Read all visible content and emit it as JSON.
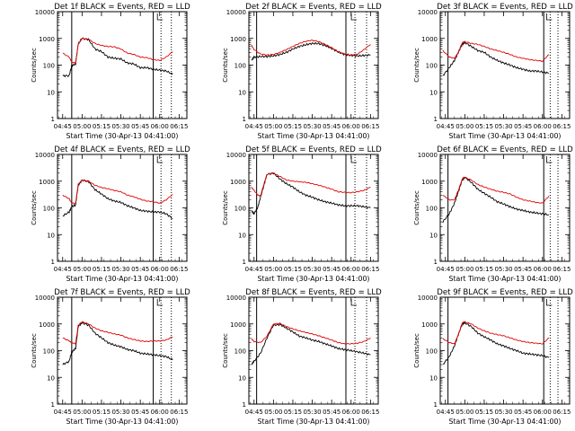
{
  "figure": {
    "panel_titles": [
      "Det 1f BLACK = Events, RED = LLD",
      "Det 2f BLACK = Events, RED = LLD",
      "Det 3f BLACK = Events, RED = LLD",
      "Det 4f BLACK = Events, RED = LLD",
      "Det 5f BLACK = Events, RED = LLD",
      "Det 6f BLACK = Events, RED = LLD",
      "Det 7f BLACK = Events, RED = LLD",
      "Det 8f BLACK = Events, RED = LLD",
      "Det 9f BLACK = Events, RED = LLD"
    ],
    "ylabel": "Counts/sec",
    "xlabel": "Start Time (30-Apr-13 04:41:00)",
    "xticks": [
      "04:45",
      "05:00",
      "05:15",
      "05:30",
      "05:45",
      "06:00",
      "06:15"
    ],
    "yticks": [
      "1",
      "10",
      "100",
      "1000",
      "10000"
    ],
    "colors": {
      "events": "#000000",
      "lld": "#e00000"
    }
  },
  "chart_data": [
    {
      "type": "line",
      "title": "Det 1f BLACK = Events, RED = LLD",
      "xlabel": "",
      "ylabel": "Counts/sec",
      "ylog": true,
      "ylim": [
        1,
        10000
      ],
      "x": [
        "04:45",
        "04:50",
        "04:52",
        "04:55",
        "04:57",
        "05:00",
        "05:05",
        "05:10",
        "05:15",
        "05:20",
        "05:25",
        "05:30",
        "05:35",
        "05:40",
        "05:45",
        "05:50",
        "05:55",
        "06:00",
        "06:05",
        "06:10"
      ],
      "series": [
        {
          "name": "Events",
          "values": [
            40,
            40,
            95,
            110,
            620,
            1000,
            900,
            400,
            320,
            200,
            180,
            170,
            120,
            110,
            80,
            80,
            70,
            65,
            60,
            45
          ]
        },
        {
          "name": "LLD",
          "values": [
            280,
            200,
            130,
            120,
            600,
            1000,
            920,
            650,
            540,
            500,
            480,
            400,
            280,
            250,
            200,
            190,
            160,
            150,
            200,
            320
          ]
        }
      ],
      "vlines": [
        "04:52",
        "05:55"
      ],
      "vlines_dotted": [
        "06:01",
        "06:09"
      ]
    },
    {
      "type": "line",
      "title": "Det 2f BLACK = Events, RED = LLD",
      "xlabel": "",
      "ylabel": "Counts/sec",
      "ylog": true,
      "ylim": [
        1,
        10000
      ],
      "x": [
        "04:43",
        "04:45",
        "04:50",
        "04:55",
        "05:00",
        "05:05",
        "05:10",
        "05:15",
        "05:20",
        "05:25",
        "05:30",
        "05:35",
        "05:40",
        "05:45",
        "05:50",
        "05:55",
        "06:00",
        "06:05",
        "06:10",
        "06:15"
      ],
      "series": [
        {
          "name": "Events",
          "values": [
            150,
            200,
            210,
            210,
            220,
            250,
            300,
            400,
            500,
            580,
            650,
            640,
            540,
            420,
            310,
            250,
            230,
            220,
            230,
            240
          ]
        },
        {
          "name": "LLD",
          "values": [
            550,
            380,
            260,
            240,
            250,
            300,
            380,
            500,
            650,
            780,
            850,
            760,
            600,
            450,
            320,
            260,
            240,
            260,
            380,
            600
          ]
        }
      ],
      "vlines": [
        "04:47",
        "05:56"
      ],
      "vlines_dotted": [
        "06:03",
        "06:12"
      ]
    },
    {
      "type": "line",
      "title": "Det 3f BLACK = Events, RED = LLD",
      "xlabel": "",
      "ylabel": "Counts/sec",
      "ylog": true,
      "ylim": [
        1,
        10000
      ],
      "x": [
        "04:43",
        "04:48",
        "04:52",
        "04:55",
        "04:58",
        "05:00",
        "05:05",
        "05:10",
        "05:15",
        "05:20",
        "05:25",
        "05:30",
        "05:35",
        "05:40",
        "05:45",
        "05:50",
        "05:55",
        "06:00",
        "06:05"
      ],
      "series": [
        {
          "name": "Events",
          "values": [
            40,
            80,
            150,
            300,
            600,
            700,
            500,
            350,
            300,
            200,
            150,
            120,
            100,
            80,
            70,
            60,
            60,
            55,
            50
          ]
        },
        {
          "name": "LLD",
          "values": [
            350,
            200,
            180,
            300,
            700,
            750,
            650,
            600,
            500,
            400,
            350,
            300,
            250,
            200,
            180,
            160,
            150,
            140,
            250
          ]
        }
      ],
      "vlines": [
        "04:47",
        "06:01"
      ],
      "vlines_dotted": [
        "06:06",
        "06:12"
      ]
    },
    {
      "type": "line",
      "title": "Det 4f BLACK = Events, RED = LLD",
      "xlabel": "",
      "ylabel": "Counts/sec",
      "ylog": true,
      "ylim": [
        1,
        10000
      ],
      "x": [
        "04:45",
        "04:50",
        "04:52",
        "04:55",
        "04:57",
        "05:00",
        "05:05",
        "05:10",
        "05:15",
        "05:20",
        "05:25",
        "05:30",
        "05:35",
        "05:40",
        "05:45",
        "05:50",
        "05:55",
        "06:00",
        "06:05",
        "06:10"
      ],
      "series": [
        {
          "name": "Events",
          "values": [
            50,
            70,
            110,
            130,
            700,
            1100,
            950,
            480,
            330,
            220,
            180,
            160,
            120,
            100,
            80,
            75,
            70,
            70,
            60,
            40
          ]
        },
        {
          "name": "LLD",
          "values": [
            300,
            220,
            150,
            150,
            750,
            1100,
            1000,
            700,
            580,
            520,
            450,
            400,
            300,
            260,
            210,
            180,
            170,
            150,
            200,
            320
          ]
        }
      ],
      "vlines": [
        "04:52",
        "05:55"
      ],
      "vlines_dotted": [
        "06:01",
        "06:09"
      ]
    },
    {
      "type": "line",
      "title": "Det 5f BLACK = Events, RED = LLD",
      "xlabel": "",
      "ylabel": "Counts/sec",
      "ylog": true,
      "ylim": [
        1,
        10000
      ],
      "x": [
        "04:43",
        "04:45",
        "04:48",
        "04:50",
        "04:53",
        "04:55",
        "05:00",
        "05:05",
        "05:10",
        "05:15",
        "05:20",
        "05:25",
        "05:30",
        "05:35",
        "05:40",
        "05:45",
        "05:50",
        "05:55",
        "06:00",
        "06:05",
        "06:10",
        "06:15"
      ],
      "series": [
        {
          "name": "Events",
          "values": [
            80,
            60,
            110,
            250,
            800,
            1800,
            2000,
            1200,
            800,
            600,
            400,
            300,
            250,
            200,
            170,
            150,
            130,
            120,
            120,
            120,
            110,
            100
          ]
        },
        {
          "name": "LLD",
          "values": [
            600,
            450,
            300,
            280,
            900,
            1800,
            2000,
            1500,
            1100,
            1000,
            950,
            900,
            800,
            700,
            600,
            500,
            400,
            380,
            370,
            400,
            450,
            600
          ]
        }
      ],
      "vlines": [
        "04:47",
        "05:56"
      ],
      "vlines_dotted": [
        "06:03",
        "06:12"
      ]
    },
    {
      "type": "line",
      "title": "Det 6f BLACK = Events, RED = LLD",
      "xlabel": "",
      "ylabel": "Counts/sec",
      "ylog": true,
      "ylim": [
        1,
        10000
      ],
      "x": [
        "04:43",
        "04:48",
        "04:52",
        "04:55",
        "04:58",
        "05:00",
        "05:05",
        "05:10",
        "05:15",
        "05:20",
        "05:25",
        "05:30",
        "05:35",
        "05:40",
        "05:45",
        "05:50",
        "05:55",
        "06:00",
        "06:05"
      ],
      "series": [
        {
          "name": "Events",
          "values": [
            30,
            60,
            150,
            400,
            1100,
            1400,
            900,
            500,
            350,
            250,
            170,
            140,
            110,
            90,
            80,
            70,
            65,
            60,
            55
          ]
        },
        {
          "name": "LLD",
          "values": [
            300,
            200,
            200,
            450,
            1200,
            1400,
            1100,
            750,
            600,
            500,
            420,
            380,
            330,
            250,
            200,
            180,
            160,
            150,
            280
          ]
        }
      ],
      "vlines": [
        "04:47",
        "06:01"
      ],
      "vlines_dotted": [
        "06:06",
        "06:12"
      ]
    },
    {
      "type": "line",
      "title": "Det 7f BLACK = Events, RED = LLD",
      "xlabel": "",
      "ylabel": "Counts/sec",
      "ylog": true,
      "ylim": [
        1,
        10000
      ],
      "x": [
        "04:45",
        "04:50",
        "04:52",
        "04:55",
        "04:57",
        "05:00",
        "05:05",
        "05:10",
        "05:15",
        "05:20",
        "05:25",
        "05:30",
        "05:35",
        "05:40",
        "05:45",
        "05:50",
        "05:55",
        "06:00",
        "06:05",
        "06:10"
      ],
      "series": [
        {
          "name": "Events",
          "values": [
            30,
            40,
            90,
            120,
            800,
            1100,
            900,
            450,
            300,
            200,
            160,
            140,
            110,
            100,
            80,
            75,
            70,
            65,
            60,
            45
          ]
        },
        {
          "name": "LLD",
          "values": [
            300,
            230,
            200,
            180,
            900,
            1200,
            1000,
            700,
            550,
            480,
            420,
            380,
            300,
            260,
            230,
            220,
            230,
            230,
            250,
            330
          ]
        }
      ],
      "vlines": [
        "04:52",
        "05:55"
      ],
      "vlines_dotted": [
        "06:01",
        "06:09"
      ]
    },
    {
      "type": "line",
      "title": "Det 8f BLACK = Events, RED = LLD",
      "xlabel": "",
      "ylabel": "Counts/sec",
      "ylog": true,
      "ylim": [
        1,
        10000
      ],
      "x": [
        "04:43",
        "04:45",
        "04:50",
        "04:55",
        "05:00",
        "05:05",
        "05:10",
        "05:15",
        "05:20",
        "05:25",
        "05:30",
        "05:35",
        "05:40",
        "05:45",
        "05:50",
        "05:55",
        "06:00",
        "06:05",
        "06:10",
        "06:15"
      ],
      "series": [
        {
          "name": "Events",
          "values": [
            30,
            40,
            80,
            300,
            900,
            950,
            700,
            500,
            350,
            300,
            250,
            220,
            180,
            150,
            120,
            110,
            100,
            90,
            80,
            70
          ]
        },
        {
          "name": "LLD",
          "values": [
            280,
            220,
            200,
            350,
            1000,
            1050,
            800,
            650,
            550,
            480,
            420,
            360,
            300,
            250,
            200,
            180,
            180,
            190,
            220,
            300
          ]
        }
      ],
      "vlines": [
        "04:47",
        "05:56"
      ],
      "vlines_dotted": [
        "06:03",
        "06:12"
      ]
    },
    {
      "type": "line",
      "title": "Det 9f BLACK = Events, RED = LLD",
      "xlabel": "",
      "ylabel": "Counts/sec",
      "ylog": true,
      "ylim": [
        1,
        10000
      ],
      "x": [
        "04:43",
        "04:48",
        "04:52",
        "04:55",
        "04:58",
        "05:00",
        "05:05",
        "05:10",
        "05:15",
        "05:20",
        "05:25",
        "05:30",
        "05:35",
        "05:40",
        "05:45",
        "05:50",
        "05:55",
        "06:00",
        "06:05"
      ],
      "series": [
        {
          "name": "Events",
          "values": [
            30,
            60,
            150,
            400,
            1000,
            1100,
            800,
            450,
            330,
            250,
            180,
            150,
            120,
            100,
            80,
            75,
            70,
            65,
            55
          ]
        },
        {
          "name": "LLD",
          "values": [
            280,
            200,
            180,
            400,
            1100,
            1200,
            1000,
            700,
            550,
            450,
            400,
            360,
            300,
            250,
            220,
            200,
            190,
            180,
            300
          ]
        }
      ],
      "vlines": [
        "04:47",
        "06:01"
      ],
      "vlines_dotted": [
        "06:06",
        "06:12"
      ]
    }
  ]
}
